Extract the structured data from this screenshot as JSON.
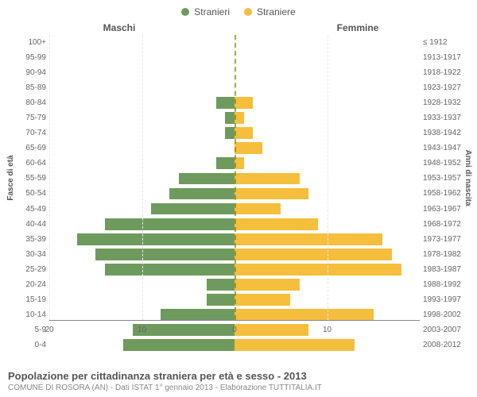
{
  "legend": {
    "male": {
      "label": "Stranieri",
      "color": "#6e9b5d"
    },
    "female": {
      "label": "Straniere",
      "color": "#f5be3d"
    }
  },
  "gender_labels": {
    "male": "Maschi",
    "female": "Femmine"
  },
  "y_axes": {
    "left_title": "Fasce di età",
    "right_title": "Anni di nascita"
  },
  "chart": {
    "x_max": 20,
    "x_ticks_left": [
      20,
      10,
      0
    ],
    "x_ticks_right": [
      0,
      10
    ],
    "bar_colors": {
      "male": "#6e9b5d",
      "female": "#f5be3d"
    },
    "background_color": "#ffffff",
    "grid_color": "#e6e6e6",
    "rows": [
      {
        "age": "100+",
        "years": "≤ 1912",
        "m": 0,
        "f": 0
      },
      {
        "age": "95-99",
        "years": "1913-1917",
        "m": 0,
        "f": 0
      },
      {
        "age": "90-94",
        "years": "1918-1922",
        "m": 0,
        "f": 0
      },
      {
        "age": "85-89",
        "years": "1923-1927",
        "m": 0,
        "f": 0
      },
      {
        "age": "80-84",
        "years": "1928-1932",
        "m": 2,
        "f": 2
      },
      {
        "age": "75-79",
        "years": "1933-1937",
        "m": 1,
        "f": 1
      },
      {
        "age": "70-74",
        "years": "1938-1942",
        "m": 1,
        "f": 2
      },
      {
        "age": "65-69",
        "years": "1943-1947",
        "m": 0,
        "f": 3
      },
      {
        "age": "60-64",
        "years": "1948-1952",
        "m": 2,
        "f": 1
      },
      {
        "age": "55-59",
        "years": "1953-1957",
        "m": 6,
        "f": 7
      },
      {
        "age": "50-54",
        "years": "1958-1962",
        "m": 7,
        "f": 8
      },
      {
        "age": "45-49",
        "years": "1963-1967",
        "m": 9,
        "f": 5
      },
      {
        "age": "40-44",
        "years": "1968-1972",
        "m": 14,
        "f": 9
      },
      {
        "age": "35-39",
        "years": "1973-1977",
        "m": 17,
        "f": 16
      },
      {
        "age": "30-34",
        "years": "1978-1982",
        "m": 15,
        "f": 17
      },
      {
        "age": "25-29",
        "years": "1983-1987",
        "m": 14,
        "f": 18
      },
      {
        "age": "20-24",
        "years": "1988-1992",
        "m": 3,
        "f": 7
      },
      {
        "age": "15-19",
        "years": "1993-1997",
        "m": 3,
        "f": 6
      },
      {
        "age": "10-14",
        "years": "1998-2002",
        "m": 8,
        "f": 15
      },
      {
        "age": "5-9",
        "years": "2003-2007",
        "m": 11,
        "f": 8
      },
      {
        "age": "0-4",
        "years": "2008-2012",
        "m": 12,
        "f": 13
      }
    ]
  },
  "footer": {
    "title": "Popolazione per cittadinanza straniera per età e sesso - 2013",
    "subtitle": "COMUNE DI ROSORA (AN) - Dati ISTAT 1° gennaio 2013 - Elaborazione TUTTITALIA.IT"
  }
}
